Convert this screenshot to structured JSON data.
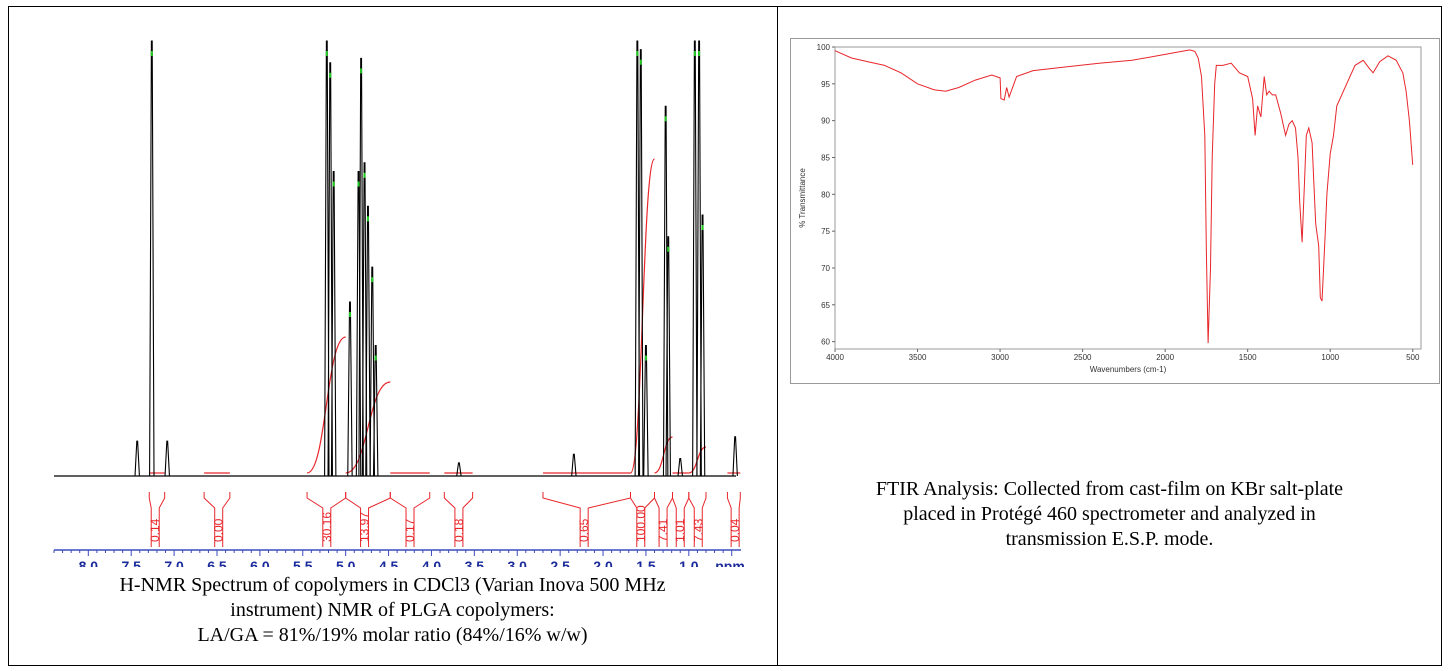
{
  "nmr": {
    "caption_lines": [
      "H-NMR Spectrum of copolymers in CDCl3 (Varian Inova 500 MHz",
      "instrument) NMR of PLGA copolymers:",
      "LA/GA = 81%/19% molar ratio (84%/16% w/w)"
    ]
  },
  "ftir": {
    "caption_lines": [
      "FTIR Analysis: Collected from cast-film on KBr salt-plate",
      "placed in Protégé 460 spectrometer and analyzed in",
      "transmission E.S.P. mode."
    ]
  },
  "chart_data": [
    {
      "type": "line",
      "title": "",
      "xlabel": "ppm",
      "x_reversed": true,
      "xlim": [
        8.4,
        0.45
      ],
      "ylim": [
        0,
        100
      ],
      "x_tick_labels": [
        "8.0",
        "7.5",
        "7.0",
        "6.5",
        "6.0",
        "5.5",
        "5.0",
        "4.5",
        "4.0",
        "3.5",
        "3.0",
        "2.5",
        "2.0",
        "1.5",
        "1.0",
        "ppm"
      ],
      "x_tick_values": [
        8.0,
        7.5,
        7.0,
        6.5,
        6.0,
        5.5,
        5.0,
        4.5,
        4.0,
        3.5,
        3.0,
        2.5,
        2.0,
        1.5,
        1.0
      ],
      "peaks": [
        {
          "ppm": 7.43,
          "height": 8
        },
        {
          "ppm": 7.26,
          "height": 105
        },
        {
          "ppm": 7.08,
          "height": 8
        },
        {
          "ppm": 5.22,
          "height": 105
        },
        {
          "ppm": 5.18,
          "height": 95
        },
        {
          "ppm": 5.14,
          "height": 70
        },
        {
          "ppm": 4.95,
          "height": 40
        },
        {
          "ppm": 4.85,
          "height": 70
        },
        {
          "ppm": 4.82,
          "height": 96
        },
        {
          "ppm": 4.78,
          "height": 72
        },
        {
          "ppm": 4.74,
          "height": 62
        },
        {
          "ppm": 4.69,
          "height": 48
        },
        {
          "ppm": 4.65,
          "height": 30
        },
        {
          "ppm": 3.68,
          "height": 3
        },
        {
          "ppm": 2.34,
          "height": 5
        },
        {
          "ppm": 1.6,
          "height": 105
        },
        {
          "ppm": 1.56,
          "height": 98
        },
        {
          "ppm": 1.5,
          "height": 30
        },
        {
          "ppm": 1.27,
          "height": 85
        },
        {
          "ppm": 1.24,
          "height": 55
        },
        {
          "ppm": 1.1,
          "height": 4
        },
        {
          "ppm": 0.93,
          "height": 105
        },
        {
          "ppm": 0.88,
          "height": 105
        },
        {
          "ppm": 0.84,
          "height": 60
        },
        {
          "ppm": 0.46,
          "height": 9
        }
      ],
      "integrals": [
        {
          "label": "0.14",
          "from": 7.29,
          "to": 7.11,
          "center": 7.22
        },
        {
          "label": "0.00",
          "from": 6.65,
          "to": 6.35,
          "center": 6.48
        },
        {
          "label": "30.16",
          "from": 5.45,
          "to": 5.0,
          "center": 5.22
        },
        {
          "label": "13.97",
          "from": 5.0,
          "to": 4.48,
          "center": 4.78
        },
        {
          "label": "0.17",
          "from": 4.48,
          "to": 4.02,
          "center": 4.25
        },
        {
          "label": "0.18",
          "from": 3.85,
          "to": 3.52,
          "center": 3.68
        },
        {
          "label": "0.65",
          "from": 2.7,
          "to": 1.68,
          "center": 2.22
        },
        {
          "label": "100.00",
          "from": 1.68,
          "to": 1.4,
          "center": 1.56
        },
        {
          "label": "7.41",
          "from": 1.4,
          "to": 1.19,
          "center": 1.3
        },
        {
          "label": "1.01",
          "from": 1.19,
          "to": 1.0,
          "center": 1.1
        },
        {
          "label": "7.43",
          "from": 1.0,
          "to": 0.8,
          "center": 0.89
        },
        {
          "label": "0.04",
          "from": 0.55,
          "to": 0.4,
          "center": 0.46
        }
      ]
    },
    {
      "type": "line",
      "title": "",
      "xlabel": "Wavenumbers (cm-1)",
      "ylabel": "% Transmittance",
      "xlim": [
        4000,
        450
      ],
      "ylim": [
        59,
        100
      ],
      "x_ticks": [
        4000,
        3500,
        3000,
        2500,
        2000,
        1500,
        1000,
        500
      ],
      "y_ticks": [
        60,
        65,
        70,
        75,
        80,
        85,
        90,
        95,
        100
      ],
      "series": [
        {
          "color": "#e8262a",
          "x": [
            4000,
            3900,
            3800,
            3700,
            3600,
            3500,
            3400,
            3330,
            3250,
            3150,
            3050,
            3000,
            2995,
            2975,
            2960,
            2945,
            2900,
            2800,
            2600,
            2400,
            2200,
            2000,
            1900,
            1850,
            1820,
            1800,
            1780,
            1760,
            1750,
            1740,
            1725,
            1715,
            1700,
            1690,
            1650,
            1600,
            1550,
            1500,
            1470,
            1455,
            1440,
            1420,
            1400,
            1385,
            1370,
            1350,
            1330,
            1300,
            1270,
            1250,
            1230,
            1210,
            1195,
            1185,
            1170,
            1155,
            1145,
            1130,
            1110,
            1100,
            1088,
            1070,
            1060,
            1050,
            1040,
            1030,
            1020,
            1000,
            980,
            960,
            900,
            850,
            800,
            760,
            740,
            700,
            650,
            600,
            560,
            540,
            520,
            500
          ],
          "y": [
            99.5,
            98.5,
            98,
            97.5,
            96.5,
            95,
            94.2,
            94,
            94.5,
            95.5,
            96.2,
            95.8,
            93,
            92.8,
            94.5,
            93.2,
            96,
            96.8,
            97.3,
            97.8,
            98.2,
            99,
            99.4,
            99.6,
            99.4,
            98.5,
            96,
            88,
            72,
            59.8,
            70,
            85,
            95,
            97.5,
            97.5,
            97.8,
            96.5,
            96,
            93,
            88,
            92,
            90.5,
            96,
            93.5,
            94,
            93.5,
            93.5,
            91,
            88,
            89.5,
            90,
            89,
            85,
            79,
            73.5,
            82,
            88,
            89,
            87,
            82,
            76,
            73,
            66,
            65.5,
            70,
            75,
            80,
            85.5,
            88,
            92,
            95,
            97.5,
            98.2,
            97,
            96.5,
            98,
            98.8,
            98.2,
            96.5,
            94,
            90,
            84
          ]
        }
      ]
    }
  ]
}
